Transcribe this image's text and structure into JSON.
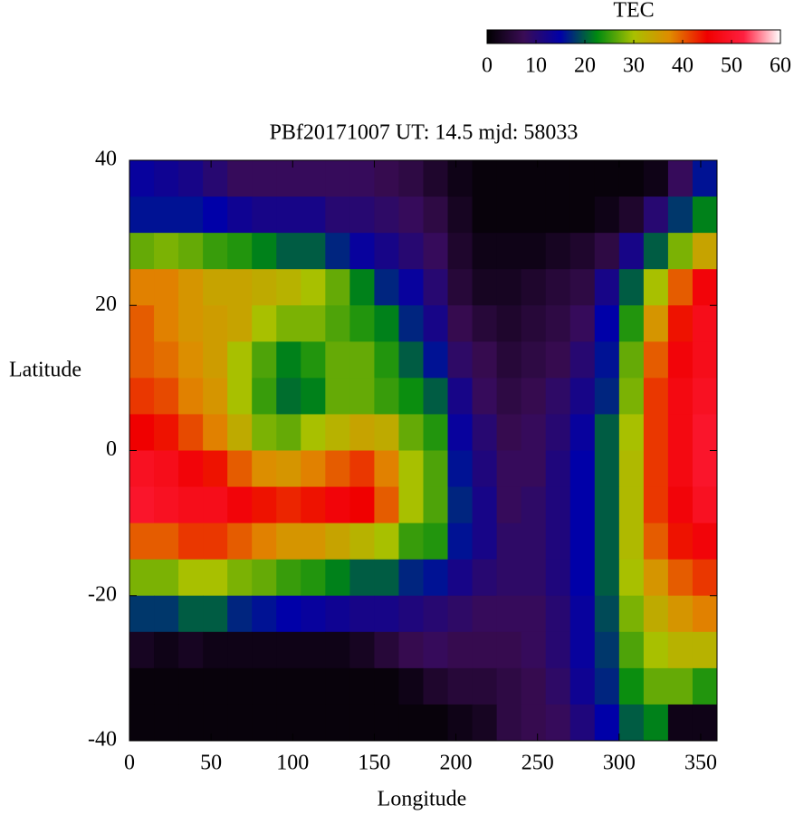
{
  "chart_data": {
    "type": "heatmap",
    "title": "PBf20171007  UT: 14.5  mjd: 58033",
    "xlabel": "Longitude",
    "ylabel": "Latitude",
    "x": [
      7.5,
      22.5,
      37.5,
      52.5,
      67.5,
      82.5,
      97.5,
      112.5,
      127.5,
      142.5,
      157.5,
      172.5,
      187.5,
      202.5,
      217.5,
      232.5,
      247.5,
      262.5,
      277.5,
      292.5,
      307.5,
      322.5,
      337.5,
      352.5
    ],
    "y": [
      37.5,
      32.5,
      27.5,
      22.5,
      17.5,
      12.5,
      7.5,
      2.5,
      -2.5,
      -7.5,
      -12.5,
      -17.5,
      -22.5,
      -27.5,
      -32.5,
      -37.5
    ],
    "values": [
      [
        14,
        13,
        12,
        10,
        8,
        8,
        8,
        8,
        8,
        8,
        7,
        6,
        4,
        2,
        1,
        1,
        1,
        1,
        1,
        1,
        1,
        2,
        8,
        16
      ],
      [
        16,
        16,
        16,
        15,
        13,
        12,
        12,
        12,
        10,
        10,
        9,
        8,
        6,
        3,
        1,
        1,
        1,
        1,
        1,
        2,
        4,
        10,
        18,
        22
      ],
      [
        27,
        28,
        27,
        25,
        24,
        22,
        20,
        20,
        17,
        14,
        12,
        10,
        8,
        4,
        2,
        2,
        2,
        3,
        4,
        6,
        12,
        20,
        28,
        34
      ],
      [
        38,
        38,
        36,
        34,
        34,
        33,
        32,
        30,
        27,
        22,
        17,
        14,
        10,
        5,
        3,
        3,
        4,
        5,
        6,
        12,
        20,
        30,
        40,
        46
      ],
      [
        40,
        38,
        36,
        35,
        34,
        30,
        28,
        28,
        26,
        24,
        22,
        17,
        12,
        7,
        5,
        4,
        5,
        6,
        8,
        15,
        24,
        36,
        44,
        48
      ],
      [
        40,
        39,
        37,
        35,
        30,
        26,
        22,
        24,
        27,
        27,
        24,
        20,
        16,
        9,
        7,
        5,
        6,
        7,
        10,
        16,
        27,
        40,
        46,
        48
      ],
      [
        42,
        41,
        38,
        36,
        30,
        25,
        21,
        22,
        27,
        27,
        25,
        23,
        20,
        12,
        8,
        6,
        7,
        9,
        12,
        17,
        28,
        42,
        47,
        49
      ],
      [
        45,
        44,
        41,
        38,
        33,
        28,
        27,
        30,
        32,
        34,
        33,
        27,
        24,
        14,
        10,
        7,
        8,
        10,
        14,
        20,
        30,
        42,
        47,
        50
      ],
      [
        49,
        48,
        46,
        44,
        40,
        37,
        36,
        38,
        40,
        42,
        38,
        30,
        26,
        16,
        11,
        8,
        8,
        11,
        15,
        20,
        31,
        42,
        47,
        50
      ],
      [
        50,
        49,
        48,
        48,
        46,
        44,
        43,
        44,
        46,
        45,
        40,
        30,
        26,
        17,
        12,
        8,
        9,
        11,
        15,
        20,
        31,
        42,
        46,
        49
      ],
      [
        40,
        40,
        42,
        42,
        40,
        38,
        36,
        36,
        34,
        32,
        30,
        25,
        24,
        16,
        12,
        9,
        9,
        11,
        15,
        20,
        31,
        40,
        44,
        46
      ],
      [
        28,
        28,
        30,
        30,
        28,
        27,
        25,
        24,
        22,
        20,
        20,
        17,
        16,
        12,
        10,
        9,
        9,
        11,
        15,
        20,
        30,
        36,
        40,
        42
      ],
      [
        18,
        18,
        20,
        20,
        17,
        16,
        15,
        14,
        13,
        12,
        12,
        11,
        10,
        9,
        8,
        8,
        8,
        10,
        14,
        19,
        28,
        33,
        36,
        38
      ],
      [
        3,
        2,
        3,
        2,
        2,
        2,
        2,
        2,
        2,
        3,
        5,
        7,
        8,
        7,
        7,
        7,
        8,
        10,
        14,
        18,
        26,
        30,
        32,
        32
      ],
      [
        1,
        1,
        1,
        1,
        1,
        1,
        1,
        1,
        1,
        1,
        1,
        2,
        4,
        5,
        5,
        6,
        7,
        9,
        13,
        17,
        23,
        27,
        27,
        24
      ],
      [
        1,
        1,
        1,
        1,
        1,
        1,
        1,
        1,
        1,
        1,
        1,
        1,
        1,
        2,
        3,
        6,
        7,
        8,
        11,
        15,
        20,
        22,
        2,
        2
      ]
    ],
    "xlim": [
      0,
      360
    ],
    "ylim": [
      -40,
      40
    ],
    "xticks": [
      0,
      50,
      100,
      150,
      200,
      250,
      300,
      350
    ],
    "yticks": [
      -40,
      -20,
      0,
      20,
      40
    ],
    "colorbar": {
      "label": "TEC",
      "lim": [
        0,
        60
      ],
      "ticks": [
        0,
        10,
        20,
        30,
        40,
        50,
        60
      ]
    },
    "colormap": [
      "#000000",
      "#3a0c55",
      "#0000a8",
      "#008a10",
      "#a8c000",
      "#e08a00",
      "#f00000",
      "#ff2040",
      "#ffffff"
    ]
  }
}
